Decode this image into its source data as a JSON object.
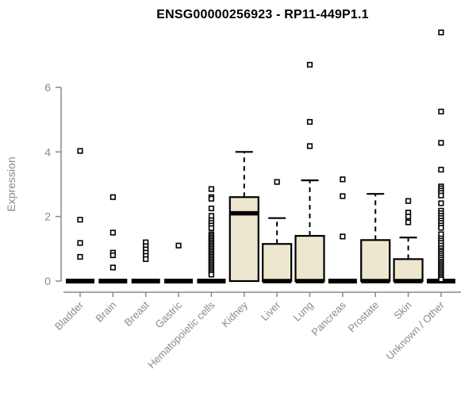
{
  "page": {
    "title": "ENSG00000256923 - RP11-449P1.1"
  },
  "chart_data": {
    "type": "boxplot",
    "title": "ENSG00000256923 - RP11-449P1.1",
    "xlabel": "",
    "ylabel": "Expression",
    "yticks": [
      0,
      2,
      4,
      6
    ],
    "ylim": [
      0,
      7.9
    ],
    "grid": false,
    "legend": "none",
    "colors": {
      "box_fill": "#ECE7CE",
      "box_stroke": "#000000",
      "axis": "#8a8a8a",
      "title": "#000000",
      "background": "#ffffff"
    },
    "categories": [
      "Bladder",
      "Brain",
      "Breast",
      "Gastric",
      "Hematopoietic cells",
      "Kidney",
      "Liver",
      "Lung",
      "Pancreas",
      "Prostate",
      "Skin",
      "Unknown / Other"
    ],
    "series": [
      {
        "name": "Bladder",
        "q1": 0,
        "median": 0,
        "q3": 0,
        "whisker_low": 0,
        "whisker_high": 0,
        "outliers": [
          4.03,
          1.9,
          1.18,
          0.75
        ]
      },
      {
        "name": "Brain",
        "q1": 0,
        "median": 0,
        "q3": 0,
        "whisker_low": 0,
        "whisker_high": 0,
        "outliers": [
          2.6,
          1.5,
          0.88,
          0.8,
          0.42
        ]
      },
      {
        "name": "Breast",
        "q1": 0,
        "median": 0,
        "q3": 0,
        "whisker_low": 0,
        "whisker_high": 0,
        "outliers": [
          1.2,
          1.08,
          0.98,
          0.88,
          0.78,
          0.68
        ]
      },
      {
        "name": "Gastric",
        "q1": 0,
        "median": 0,
        "q3": 0,
        "whisker_low": 0,
        "whisker_high": 0,
        "outliers": [
          1.1
        ]
      },
      {
        "name": "Hematopoietic cells",
        "q1": 0,
        "median": 0,
        "q3": 0,
        "whisker_low": 0,
        "whisker_high": 0,
        "outliers": [
          2.85,
          2.6,
          2.55,
          2.25,
          2.02,
          1.88,
          1.8,
          1.72,
          1.64,
          1.45,
          1.4,
          1.35,
          1.3,
          1.25,
          1.2,
          1.15,
          1.1,
          1.05,
          1.0,
          0.95,
          0.9,
          0.85,
          0.8,
          0.75,
          0.7,
          0.65,
          0.6,
          0.55,
          0.5,
          0.45,
          0.4,
          0.35,
          0.3,
          0.25,
          0.2
        ]
      },
      {
        "name": "Kidney",
        "q1": 0,
        "median": 2.1,
        "q3": 2.6,
        "whisker_low": 0,
        "whisker_high": 4.0,
        "outliers": []
      },
      {
        "name": "Liver",
        "q1": 0,
        "median": 0,
        "q3": 1.15,
        "whisker_low": 0,
        "whisker_high": 1.95,
        "outliers": [
          3.07
        ]
      },
      {
        "name": "Lung",
        "q1": 0,
        "median": 0,
        "q3": 1.4,
        "whisker_low": 0,
        "whisker_high": 3.12,
        "outliers": [
          6.7,
          4.93,
          4.18
        ]
      },
      {
        "name": "Pancreas",
        "q1": 0,
        "median": 0,
        "q3": 0,
        "whisker_low": 0,
        "whisker_high": 0,
        "outliers": [
          3.15,
          2.63,
          1.38
        ]
      },
      {
        "name": "Prostate",
        "q1": 0,
        "median": 0,
        "q3": 1.27,
        "whisker_low": 0,
        "whisker_high": 2.7,
        "outliers": []
      },
      {
        "name": "Skin",
        "q1": 0,
        "median": 0,
        "q3": 0.68,
        "whisker_low": 0,
        "whisker_high": 1.35,
        "outliers": [
          2.48,
          2.12,
          2.0,
          1.82
        ]
      },
      {
        "name": "Unknown / Other",
        "q1": 0,
        "median": 0,
        "q3": 0,
        "whisker_low": 0,
        "whisker_high": 0,
        "outliers": [
          7.7,
          5.25,
          4.28,
          3.45,
          2.93,
          2.87,
          2.8,
          2.73,
          2.65,
          2.41,
          2.18,
          2.1,
          2.02,
          1.95,
          1.87,
          1.8,
          1.72,
          1.65,
          1.45,
          1.32,
          1.25,
          1.18,
          1.1,
          1.02,
          0.95,
          0.9,
          0.84,
          0.78,
          0.72,
          0.66,
          0.6,
          0.55,
          0.5,
          0.45,
          0.4,
          0.35,
          0.3,
          0.25,
          0.2,
          0.15,
          0.1,
          0.05
        ]
      }
    ]
  }
}
